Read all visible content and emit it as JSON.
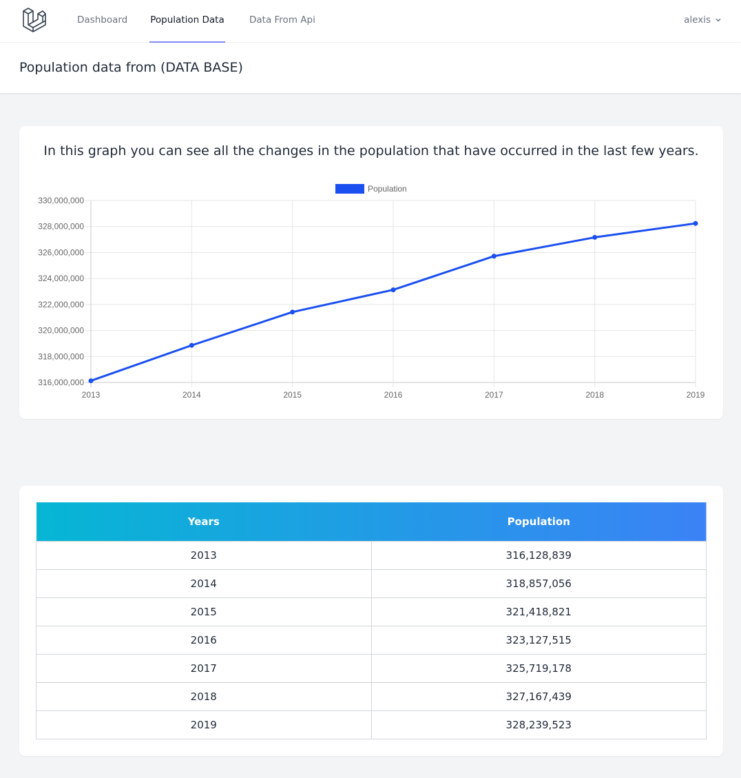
{
  "nav": {
    "links": [
      {
        "label": "Dashboard",
        "active": false
      },
      {
        "label": "Population Data",
        "active": true
      },
      {
        "label": "Data From Api",
        "active": false
      }
    ],
    "user": "alexis",
    "logo_icon": "laravel-logo-icon",
    "user_menu_icon": "chevron-down-icon"
  },
  "header": {
    "title": "Population data from (DATA BASE)"
  },
  "chart_card": {
    "caption": "In this graph you can see all the changes in the population that have occurred in the last few years."
  },
  "chart_data": {
    "type": "line",
    "x": [
      "2013",
      "2014",
      "2015",
      "2016",
      "2017",
      "2018",
      "2019"
    ],
    "series": [
      {
        "name": "Population",
        "color": "#1a4ff0",
        "values": [
          316128839,
          318857056,
          321418821,
          323127515,
          325719178,
          327167439,
          328239523
        ]
      }
    ],
    "ylim": [
      316000000,
      330000000
    ],
    "yticks": [
      "330,000,000",
      "328,000,000",
      "326,000,000",
      "324,000,000",
      "322,000,000",
      "320,000,000",
      "318,000,000",
      "316,000,000"
    ],
    "grid": true,
    "legend": "top-center"
  },
  "table": {
    "headers": [
      "Years",
      "Population"
    ],
    "rows": [
      [
        "2013",
        "316,128,839"
      ],
      [
        "2014",
        "318,857,056"
      ],
      [
        "2015",
        "321,418,821"
      ],
      [
        "2016",
        "323,127,515"
      ],
      [
        "2017",
        "325,719,178"
      ],
      [
        "2018",
        "327,167,439"
      ],
      [
        "2019",
        "328,239,523"
      ]
    ],
    "header_gradient": [
      "#06b6d4",
      "#3b82f6"
    ]
  }
}
